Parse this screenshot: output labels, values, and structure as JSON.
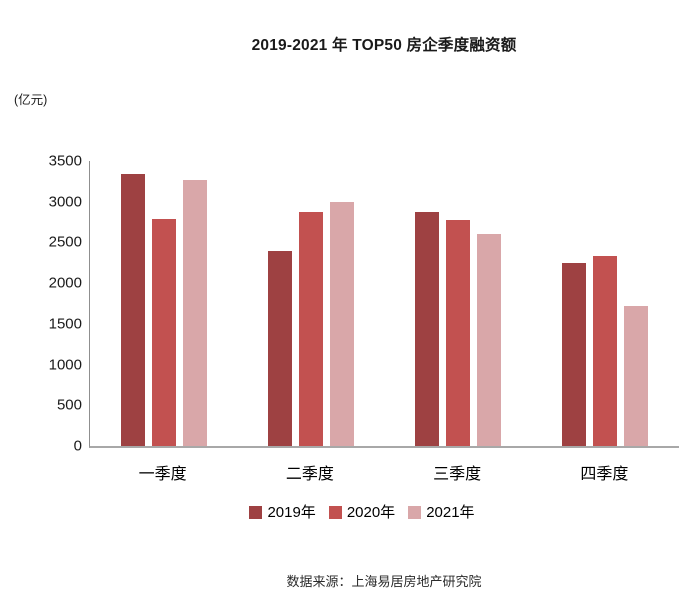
{
  "title": "2019-2021 年 TOP50 房企季度融资额",
  "unit_label": "(亿元)",
  "source": "数据来源：上海易居房地产研究院",
  "colors": {
    "series_2019": "#9E4142",
    "series_2020": "#C25150",
    "series_2021": "#D9A7A9",
    "axis_line": "#8f8f8f",
    "baseline": "#a8a8a8",
    "text": "#1a1a1a"
  },
  "chart_data": {
    "type": "bar",
    "title": "2019-2021 年 TOP50 房企季度融资额",
    "xlabel": "",
    "ylabel": "(亿元)",
    "categories": [
      "一季度",
      "二季度",
      "三季度",
      "四季度"
    ],
    "series": [
      {
        "name": "2019年",
        "color": "#9E4142",
        "values": [
          3340,
          2390,
          2870,
          2250
        ]
      },
      {
        "name": "2020年",
        "color": "#C25150",
        "values": [
          2790,
          2880,
          2770,
          2330
        ]
      },
      {
        "name": "2021年",
        "color": "#D9A7A9",
        "values": [
          3270,
          3000,
          2600,
          1720
        ]
      }
    ],
    "ylim": [
      0,
      3500
    ],
    "yticks": [
      0,
      500,
      1000,
      1500,
      2000,
      2500,
      3000,
      3500
    ],
    "grid": false,
    "legend_position": "bottom"
  }
}
